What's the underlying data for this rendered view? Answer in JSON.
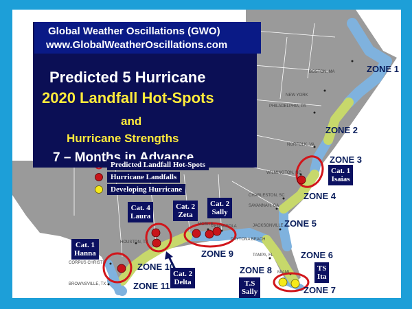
{
  "header": {
    "org": "Global Weather Oscillations (GWO)",
    "url": "www.GlobalWeatherOscillations.com"
  },
  "title": {
    "line1": "Predicted 5 Hurricane",
    "line2": "2020 Landfall Hot-Spots",
    "line3": "and",
    "line4": "Hurricane Strengths",
    "line5": "7 – Months in Advance"
  },
  "legend": {
    "predicted": "Predicted Landfall Hot-Spots",
    "landfalls": "Hurricane Landfalls",
    "developing": "Developing Hurricane"
  },
  "storm_labels": {
    "hanna": [
      "Cat. 1",
      "Hanna"
    ],
    "laura": [
      "Cat. 4",
      "Laura"
    ],
    "zeta": [
      "Cat. 2",
      "Zeta"
    ],
    "sally": [
      "Cat. 2",
      "Sally"
    ],
    "delta": [
      "Cat. 2",
      "Delta"
    ],
    "isaias": [
      "Cat. 1",
      "Isaias"
    ],
    "ts_sally": [
      "T.S",
      "Sally"
    ],
    "ts_ita": [
      "TS",
      "Ita"
    ]
  },
  "zones": [
    "ZONE 1",
    "ZONE 2",
    "ZONE 3",
    "ZONE 4",
    "ZONE 5",
    "ZONE 6",
    "ZONE 7",
    "ZONE 8",
    "ZONE 9",
    "ZONE 10",
    "ZONE 11"
  ],
  "cities": [
    "BOSTON, MA",
    "NEW YORK",
    "PHILADELPHIA, PA",
    "NORFOLK, VA",
    "WILMINGTON, NC",
    "CHARLESTON, SC",
    "SAVANNAH, GA",
    "JACKSONVILLE",
    "TAMPA, FL",
    "MIAMI",
    "HOUSTON, TX",
    "CORPUS CHRISTI",
    "BROWNSVILLE, TX",
    "MOBILE",
    "PENSACOLA",
    "DAYTONA BEACH"
  ],
  "colors": {
    "frame": "#1d9fd8",
    "land": "#9a9a9a",
    "zone_blue": "#7fb2de",
    "zone_green": "#c7d86b",
    "hotspot_ring": "#d1161b",
    "landfall_dot": "#c8141a",
    "developing_dot": "#f6ea1a",
    "label_bg": "#0b1060"
  }
}
